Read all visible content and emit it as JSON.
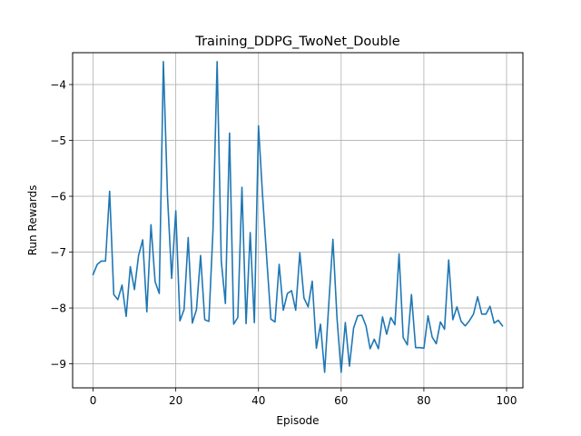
{
  "chart_data": {
    "type": "line",
    "title": "Training_DDPG_TwoNet_Double",
    "xlabel": "Episode",
    "ylabel": "Run Rewards",
    "xlim": [
      -4.95,
      103.95
    ],
    "ylim": [
      -9.43,
      -3.43
    ],
    "xticks": [
      0,
      20,
      40,
      60,
      80,
      100
    ],
    "yticks": [
      -9,
      -8,
      -7,
      -6,
      -5,
      -4
    ],
    "grid": true,
    "series": [
      {
        "color": "#1f77b4",
        "x": [
          0,
          1,
          2,
          3,
          4,
          5,
          6,
          7,
          8,
          9,
          10,
          11,
          12,
          13,
          14,
          15,
          16,
          17,
          18,
          19,
          20,
          21,
          22,
          23,
          24,
          25,
          26,
          27,
          28,
          29,
          30,
          31,
          32,
          33,
          34,
          35,
          36,
          37,
          38,
          39,
          40,
          41,
          42,
          43,
          44,
          45,
          46,
          47,
          48,
          49,
          50,
          51,
          52,
          53,
          54,
          55,
          56,
          57,
          58,
          59,
          60,
          61,
          62,
          63,
          64,
          65,
          66,
          67,
          68,
          69,
          70,
          71,
          72,
          73,
          74,
          75,
          76,
          77,
          78,
          79,
          80,
          81,
          82,
          83,
          84,
          85,
          86,
          87,
          88,
          89,
          90,
          91,
          92,
          93,
          94,
          95,
          96,
          97,
          98,
          99
        ],
        "values": [
          -7.4,
          -7.22,
          -7.16,
          -7.16,
          -5.91,
          -7.76,
          -7.85,
          -7.59,
          -8.15,
          -7.26,
          -7.67,
          -7.06,
          -6.78,
          -8.07,
          -6.51,
          -7.53,
          -7.74,
          -3.59,
          -6.0,
          -7.47,
          -6.26,
          -8.23,
          -8.03,
          -6.74,
          -8.27,
          -8.03,
          -7.06,
          -8.21,
          -8.24,
          -6.6,
          -3.59,
          -7.16,
          -7.92,
          -4.87,
          -8.29,
          -8.17,
          -5.84,
          -8.28,
          -6.65,
          -8.26,
          -4.74,
          -6.0,
          -7.12,
          -8.2,
          -8.25,
          -7.22,
          -8.04,
          -7.74,
          -7.69,
          -8.04,
          -7.01,
          -7.82,
          -7.98,
          -7.52,
          -8.72,
          -8.29,
          -9.15,
          -7.93,
          -6.77,
          -8.19,
          -9.15,
          -8.26,
          -9.04,
          -8.36,
          -8.14,
          -8.13,
          -8.32,
          -8.73,
          -8.56,
          -8.73,
          -8.16,
          -8.47,
          -8.17,
          -8.3,
          -7.03,
          -8.53,
          -8.66,
          -7.76,
          -8.71,
          -8.71,
          -8.72,
          -8.14,
          -8.52,
          -8.64,
          -8.25,
          -8.38,
          -7.14,
          -8.21,
          -7.98,
          -8.24,
          -8.32,
          -8.23,
          -8.11,
          -7.8,
          -8.11,
          -8.11,
          -7.97,
          -8.27,
          -8.22,
          -8.32
        ]
      }
    ]
  }
}
